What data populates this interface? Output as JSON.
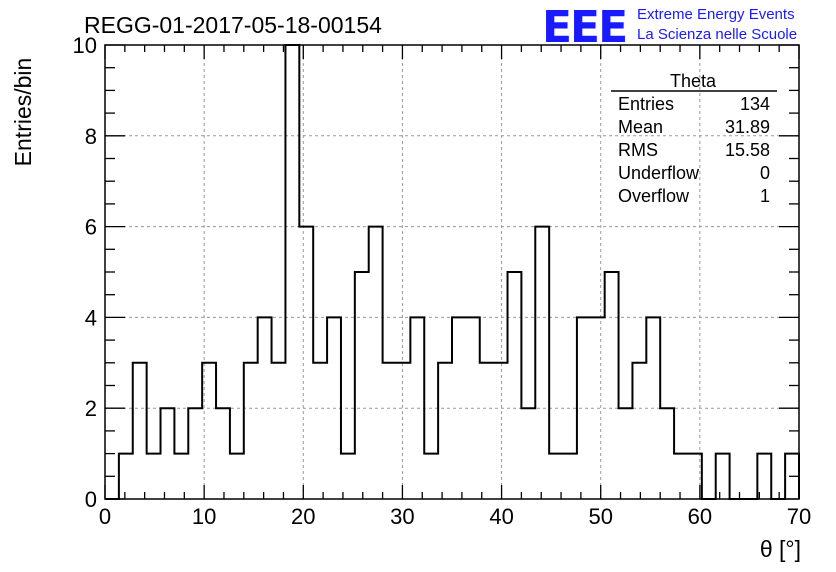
{
  "chart_data": {
    "type": "histogram",
    "title": "REGG-01-2017-05-18-00154",
    "xlabel": "θ [°]",
    "ylabel": "Entries/bin",
    "xlim": [
      0,
      70
    ],
    "ylim": [
      0,
      10
    ],
    "xticks": [
      0,
      10,
      20,
      30,
      40,
      50,
      60,
      70
    ],
    "yticks": [
      0,
      2,
      4,
      6,
      8,
      10
    ],
    "xtick_labels": [
      "0",
      "10",
      "20",
      "30",
      "40",
      "50",
      "60",
      "70"
    ],
    "ytick_labels": [
      "0",
      "2",
      "4",
      "6",
      "8",
      "10"
    ],
    "grid": true,
    "bin_width": 1.4,
    "bin_edges_start": 0,
    "counts": [
      0,
      1,
      3,
      1,
      2,
      1,
      2,
      3,
      2,
      1,
      3,
      4,
      3,
      10,
      6,
      3,
      4,
      1,
      5,
      6,
      3,
      3,
      4,
      1,
      3,
      4,
      4,
      3,
      3,
      5,
      2,
      6,
      1,
      1,
      4,
      4,
      5,
      2,
      3,
      4,
      2,
      1,
      1,
      0,
      1,
      0,
      0,
      1,
      0,
      1
    ]
  },
  "stats_box": {
    "title": "Theta",
    "rows": [
      {
        "label": "Entries",
        "value": "134"
      },
      {
        "label": "Mean",
        "value": "31.89"
      },
      {
        "label": "RMS",
        "value": "15.58"
      },
      {
        "label": "Underflow",
        "value": "0"
      },
      {
        "label": "Overflow",
        "value": "1"
      }
    ]
  },
  "logo": {
    "mark": "EEE",
    "line1": "Extreme Energy Events",
    "line2": "La Scienza nelle Scuole",
    "color": "#1a1aff"
  }
}
